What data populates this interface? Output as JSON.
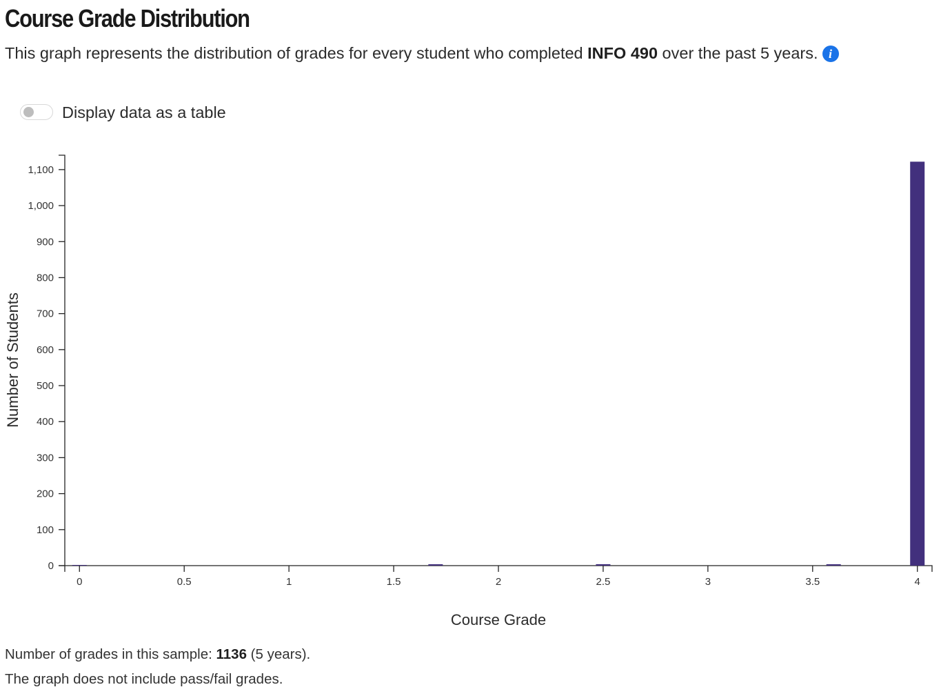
{
  "page": {
    "title": "Course Grade Distribution",
    "subtitle_prefix": "This graph represents the distribution of grades for every student who completed ",
    "course": "INFO 490",
    "subtitle_suffix": " over the past 5 years.",
    "info_icon": "info-icon",
    "toggle_label": "Display data as a table",
    "toggle_on": false,
    "footer_prefix": "Number of grades in this sample: ",
    "footer_count": "1136",
    "footer_suffix": " (5 years).",
    "footer_note": "The graph does not include pass/fail grades."
  },
  "colors": {
    "bar": "#42307d",
    "info_icon": "#1a73e8",
    "axis": "#222222"
  },
  "chart_data": {
    "type": "bar",
    "xlabel": "Course Grade",
    "ylabel": "Number of Students",
    "xlim": [
      -0.07,
      4.07
    ],
    "ylim": [
      0,
      1140
    ],
    "x_ticks": [
      "0",
      "0.5",
      "1",
      "1.5",
      "2",
      "2.5",
      "3",
      "3.5",
      "4"
    ],
    "y_ticks": [
      "0",
      "100",
      "200",
      "300",
      "400",
      "500",
      "600",
      "700",
      "800",
      "900",
      "1,000",
      "1,100"
    ],
    "grid": false,
    "legend": "none",
    "points": [
      {
        "x": 0.0,
        "y": 0
      },
      {
        "x": 1.7,
        "y": 1
      },
      {
        "x": 2.5,
        "y": 4
      },
      {
        "x": 3.6,
        "y": 2
      },
      {
        "x": 4.0,
        "y": 1122
      }
    ]
  }
}
